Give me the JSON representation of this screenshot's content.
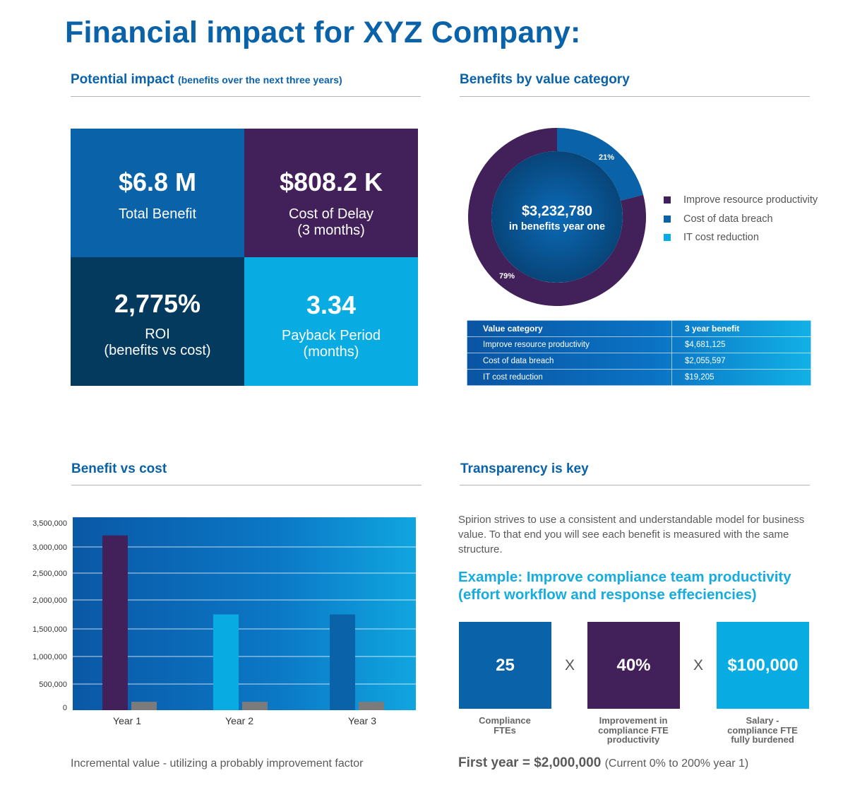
{
  "title": "Financial impact for XYZ Company:",
  "sections": {
    "potential_impact": {
      "title": "Potential impact",
      "subtitle": "(benefits over the next three years)"
    },
    "benefits_by_category": {
      "title": "Benefits by value category"
    },
    "benefit_vs_cost": {
      "title": "Benefit vs cost"
    },
    "transparency": {
      "title": "Transparency is key"
    }
  },
  "kpis": [
    {
      "value": "$6.8 M",
      "label": "Total Benefit",
      "color": "#0a62a8"
    },
    {
      "value": "$808.2 K",
      "label": "Cost of Delay\n(3 months)",
      "color": "#42205a"
    },
    {
      "value": "2,775%",
      "label": "ROI\n(benefits vs cost)",
      "color": "#033a5e"
    },
    {
      "value": "3.34",
      "label": "Payback Period\n(months)",
      "color": "#08ace2"
    }
  ],
  "donut": {
    "center_value": "$3,232,780",
    "center_label": "in benefits year one",
    "slices": [
      {
        "label": "Improve resource productivity",
        "percent": 79,
        "percent_label": "79%",
        "color": "#42205a"
      },
      {
        "label": "Cost of data breach",
        "percent": 21,
        "percent_label": "21%",
        "color": "#0a62a8"
      },
      {
        "label": "IT cost reduction",
        "percent": 0,
        "percent_label": "",
        "color": "#08ace2"
      }
    ]
  },
  "value_table": {
    "headers": [
      "Value category",
      "3 year benefit"
    ],
    "rows": [
      [
        "Improve resource productivity",
        "$4,681,125"
      ],
      [
        "Cost of data breach",
        "$2,055,597"
      ],
      [
        "IT cost reduction",
        "$19,205"
      ]
    ]
  },
  "chart_data": {
    "type": "bar",
    "categories": [
      "Year 1",
      "Year 2",
      "Year 3"
    ],
    "series": [
      {
        "values": [
          3240000,
          1750000,
          1750000
        ],
        "colors": [
          "#42205a",
          "#08ace2",
          "#0a62a8"
        ]
      },
      {
        "values": [
          120000,
          120000,
          120000
        ],
        "colors": [
          "#7b7b7b",
          "#7b7b7b",
          "#7b7b7b"
        ]
      }
    ],
    "yticks": [
      "3,500,000",
      "3,000,000",
      "2,500,000",
      "2,000,000",
      "1,500,000",
      "1,000,000",
      "500,000",
      "0"
    ],
    "ylim": [
      0,
      3500000
    ],
    "grid": true
  },
  "chart_caption": "Incremental value - utilizing a probably improvement factor",
  "transparency_text": "Spirion strives to use a consistent and understandable model for business value. To that end you will see each benefit is measured with the same structure.",
  "example": {
    "title_line1": "Example: Improve compliance team productivity",
    "title_line2": "(effort workflow and response effeciencies)",
    "boxes": [
      {
        "value": "25",
        "label": "Compliance\nFTEs",
        "color": "#0a62a8"
      },
      {
        "value": "40%",
        "label": "Improvement in\ncompliance FTE\nproductivity",
        "color": "#42205a"
      },
      {
        "value": "$100,000",
        "label": "Salary -\ncompliance FTE\nfully burdened",
        "color": "#08ace2"
      }
    ],
    "operator": "X",
    "result_main": "First year = $2,000,000",
    "result_note": "(Current 0% to 200% year 1)"
  }
}
